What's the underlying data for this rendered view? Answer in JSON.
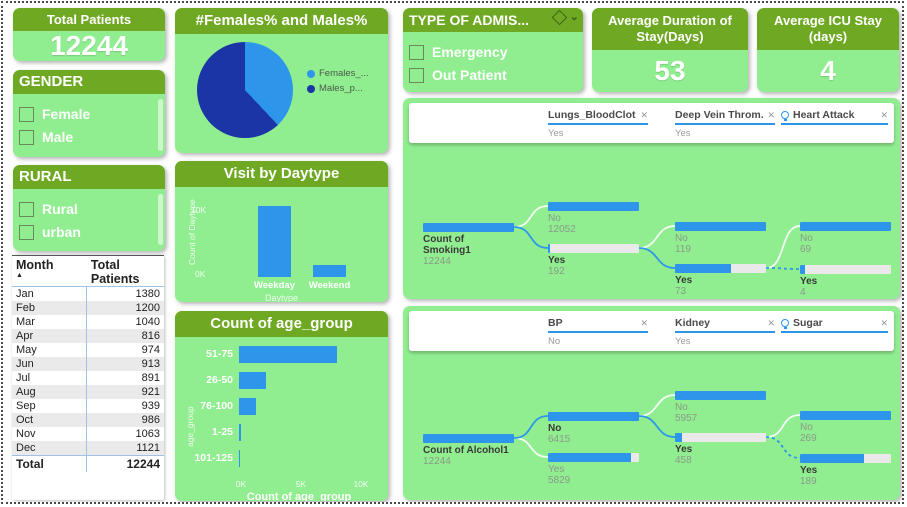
{
  "colors": {
    "card_green": "#90EE90",
    "header_green": "#6FA823",
    "bar_blue": "#2E96EA",
    "pie_dark_blue": "#1B34A6",
    "track_gray": "#E9E9E9"
  },
  "icons": {
    "close": "✕",
    "sort_ascending": "▲",
    "chevron_down": "⌄"
  },
  "kpis": {
    "total_patients": {
      "title": "Total Patients",
      "value": "12244"
    },
    "avg_duration": {
      "title": "Average Duration of Stay(Days)",
      "value": "53"
    },
    "avg_icu": {
      "title": "Average ICU Stay (days)",
      "value": "4"
    }
  },
  "slicers": {
    "gender": {
      "title": "GENDER",
      "items": [
        "Female",
        "Male"
      ]
    },
    "rural": {
      "title": "RURAL",
      "items": [
        "Rural",
        "urban"
      ]
    },
    "admission": {
      "title": "TYPE OF ADMIS...",
      "items": [
        "Emergency",
        "Out Patient"
      ]
    }
  },
  "table": {
    "columns": [
      "Month",
      "Total Patients"
    ],
    "rows": [
      [
        "Jan",
        "1380"
      ],
      [
        "Feb",
        "1200"
      ],
      [
        "Mar",
        "1040"
      ],
      [
        "Apr",
        "816"
      ],
      [
        "May",
        "974"
      ],
      [
        "Jun",
        "913"
      ],
      [
        "Jul",
        "891"
      ],
      [
        "Aug",
        "921"
      ],
      [
        "Sep",
        "939"
      ],
      [
        "Oct",
        "986"
      ],
      [
        "Nov",
        "1063"
      ],
      [
        "Dec",
        "1121"
      ]
    ],
    "total_row": [
      "Total",
      "12244"
    ]
  },
  "chart_data": [
    {
      "type": "pie",
      "title": "#Females% and Males%",
      "labels": [
        "Females_...",
        "Males_p..."
      ],
      "values_pct": [
        38,
        62
      ],
      "colors": [
        "#2E96EA",
        "#1B34A6"
      ],
      "legend_position": "right"
    },
    {
      "type": "bar",
      "title": "Visit by Daytype",
      "categories": [
        "Weekday",
        "Weekend"
      ],
      "values": [
        10400,
        1800
      ],
      "xlabel": "Daytype",
      "ylabel": "Count of Daytype",
      "yticks": [
        "0K",
        "10K"
      ],
      "ylim": [
        0,
        11700
      ],
      "grid": false
    },
    {
      "type": "bar",
      "orientation": "horizontal",
      "title": "Count of age_group",
      "categories": [
        "51-75",
        "26-50",
        "76-100",
        "1-25",
        "101-125"
      ],
      "values": [
        8200,
        2250,
        1450,
        200,
        50
      ],
      "xlabel": "Count of age_group",
      "ylabel": "age_group",
      "xticks": [
        "0K",
        "5K",
        "10K"
      ],
      "xlim": [
        0,
        10000
      ],
      "grid": false
    }
  ],
  "trees": [
    {
      "breadcrumbs": [
        {
          "label": "Lungs_BloodClot",
          "value": "Yes",
          "bulb": false
        },
        {
          "label": "Deep Vein Throm...",
          "value": "Yes",
          "bulb": false
        },
        {
          "label": "Heart Attack",
          "value": "",
          "bulb": true
        }
      ],
      "root": {
        "label": "Count of Smoking1",
        "count": "12244"
      },
      "levels": [
        [
          {
            "label": "No",
            "count": "12052",
            "fill": 100,
            "bold": false,
            "conn": "white"
          },
          {
            "label": "Yes",
            "count": "192",
            "fill": 2,
            "bold": true,
            "conn": "blue",
            "next": true
          }
        ],
        [
          {
            "label": "No",
            "count": "119",
            "fill": 100,
            "bold": false,
            "conn": "white"
          },
          {
            "label": "Yes",
            "count": "73",
            "fill": 61,
            "bold": true,
            "conn": "blue",
            "next": true
          }
        ],
        [
          {
            "label": "No",
            "count": "69",
            "fill": 100,
            "bold": false,
            "conn": "white"
          },
          {
            "label": "Yes",
            "count": "4",
            "fill": 6,
            "bold": true,
            "conn": "dashed"
          }
        ]
      ]
    },
    {
      "breadcrumbs": [
        {
          "label": "BP",
          "value": "No",
          "bulb": false
        },
        {
          "label": "Kidney",
          "value": "Yes",
          "bulb": false
        },
        {
          "label": "Sugar",
          "value": "",
          "bulb": true
        }
      ],
      "root": {
        "label": "Count of Alcohol1",
        "count": "12244"
      },
      "levels": [
        [
          {
            "label": "No",
            "count": "6415",
            "fill": 100,
            "bold": true,
            "conn": "blue",
            "next": true
          },
          {
            "label": "Yes",
            "count": "5829",
            "fill": 91,
            "bold": false,
            "conn": "white"
          }
        ],
        [
          {
            "label": "No",
            "count": "5957",
            "fill": 100,
            "bold": false,
            "conn": "white"
          },
          {
            "label": "Yes",
            "count": "458",
            "fill": 8,
            "bold": true,
            "conn": "blue",
            "next": true
          }
        ],
        [
          {
            "label": "No",
            "count": "269",
            "fill": 100,
            "bold": false,
            "conn": "white"
          },
          {
            "label": "Yes",
            "count": "189",
            "fill": 70,
            "bold": true,
            "conn": "dashed"
          }
        ]
      ]
    }
  ]
}
